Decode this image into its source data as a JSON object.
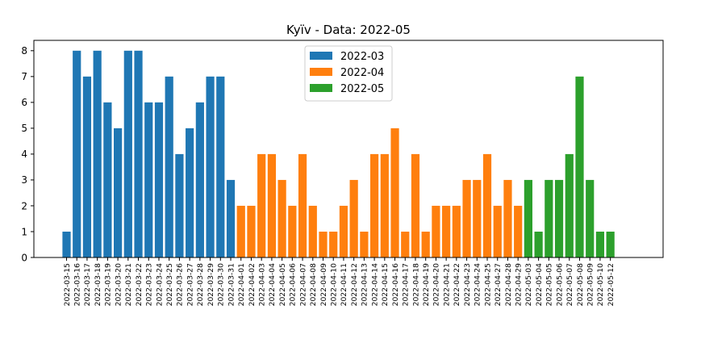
{
  "chart_data": {
    "type": "bar",
    "title": "Kyïv - Data: 2022-05",
    "xlabel": "",
    "ylabel": "",
    "ylim": [
      0,
      8.4
    ],
    "yticks": [
      0,
      1,
      2,
      3,
      4,
      5,
      6,
      7,
      8
    ],
    "grid": false,
    "legend_position": "top-center",
    "series": [
      {
        "name": "2022-03",
        "color": "#1f77b4",
        "categories": [
          "2022-03-15",
          "2022-03-16",
          "2022-03-17",
          "2022-03-18",
          "2022-03-19",
          "2022-03-20",
          "2022-03-21",
          "2022-03-22",
          "2022-03-23",
          "2022-03-24",
          "2022-03-25",
          "2022-03-26",
          "2022-03-27",
          "2022-03-28",
          "2022-03-29",
          "2022-03-30",
          "2022-03-31"
        ],
        "values": [
          1,
          8,
          7,
          8,
          6,
          5,
          8,
          8,
          6,
          6,
          7,
          4,
          5,
          6,
          7,
          7,
          3
        ]
      },
      {
        "name": "2022-04",
        "color": "#ff7f0e",
        "categories": [
          "2022-04-01",
          "2022-04-02",
          "2022-04-03",
          "2022-04-04",
          "2022-04-05",
          "2022-04-06",
          "2022-04-07",
          "2022-04-08",
          "2022-04-09",
          "2022-04-10",
          "2022-04-11",
          "2022-04-12",
          "2022-04-13",
          "2022-04-14",
          "2022-04-15",
          "2022-04-16",
          "2022-04-17",
          "2022-04-18",
          "2022-04-19",
          "2022-04-20",
          "2022-04-21",
          "2022-04-22",
          "2022-04-23",
          "2022-04-24",
          "2022-04-25",
          "2022-04-27",
          "2022-04-28",
          "2022-04-29"
        ],
        "values": [
          2,
          2,
          4,
          4,
          3,
          2,
          4,
          2,
          1,
          1,
          2,
          3,
          1,
          4,
          4,
          5,
          1,
          4,
          1,
          2,
          2,
          2,
          3,
          3,
          4,
          2,
          3,
          2
        ]
      },
      {
        "name": "2022-05",
        "color": "#2ca02c",
        "categories": [
          "2022-05-03",
          "2022-05-04",
          "2022-05-05",
          "2022-05-06",
          "2022-05-07",
          "2022-05-08",
          "2022-05-09",
          "2022-05-10",
          "2022-05-12"
        ],
        "values": [
          3,
          1,
          3,
          3,
          4,
          7,
          3,
          1,
          1
        ]
      }
    ]
  }
}
